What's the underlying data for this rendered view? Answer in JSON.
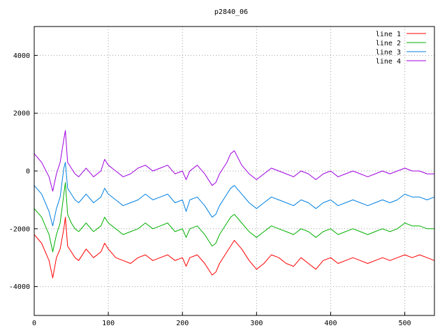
{
  "chart_data": {
    "type": "line",
    "title": "p2840_06",
    "xlabel": "",
    "ylabel": "",
    "xlim": [
      0,
      540
    ],
    "ylim": [
      -5000,
      5000
    ],
    "x_ticks": [
      "0",
      "100",
      "200",
      "300",
      "400",
      "500"
    ],
    "y_ticks": [
      "-4000",
      "-2000",
      "0",
      "2000",
      "4000"
    ],
    "grid": true,
    "legend_position": "top-right",
    "series": [
      {
        "name": "line 1",
        "color": "#ff0000",
        "x": [
          0,
          10,
          20,
          25,
          30,
          35,
          40,
          42,
          45,
          50,
          55,
          60,
          70,
          80,
          90,
          95,
          100,
          110,
          120,
          130,
          140,
          150,
          160,
          170,
          180,
          190,
          200,
          205,
          210,
          220,
          230,
          240,
          245,
          250,
          260,
          265,
          270,
          280,
          290,
          300,
          310,
          320,
          330,
          340,
          350,
          360,
          370,
          380,
          390,
          400,
          410,
          420,
          430,
          440,
          450,
          460,
          470,
          480,
          490,
          500,
          510,
          520,
          530,
          540
        ],
        "values": [
          -2200,
          -2500,
          -3100,
          -3700,
          -3000,
          -2700,
          -2000,
          -1600,
          -2600,
          -2800,
          -3000,
          -3100,
          -2700,
          -3000,
          -2800,
          -2500,
          -2700,
          -3000,
          -3100,
          -3200,
          -3000,
          -2900,
          -3100,
          -3000,
          -2900,
          -3100,
          -3000,
          -3300,
          -3000,
          -2900,
          -3200,
          -3600,
          -3500,
          -3200,
          -2800,
          -2600,
          -2400,
          -2700,
          -3100,
          -3400,
          -3200,
          -2900,
          -3000,
          -3200,
          -3300,
          -3000,
          -3200,
          -3400,
          -3100,
          -3000,
          -3200,
          -3100,
          -3000,
          -3100,
          -3200,
          -3100,
          -3000,
          -3100,
          -3000,
          -2900,
          -3000,
          -2900,
          -3000,
          -3100
        ]
      },
      {
        "name": "line 2",
        "color": "#00b000",
        "x": [
          0,
          10,
          20,
          25,
          30,
          35,
          40,
          42,
          45,
          50,
          55,
          60,
          70,
          80,
          90,
          95,
          100,
          110,
          120,
          130,
          140,
          150,
          160,
          170,
          180,
          190,
          200,
          205,
          210,
          220,
          230,
          240,
          245,
          250,
          260,
          265,
          270,
          280,
          290,
          300,
          310,
          320,
          330,
          340,
          350,
          360,
          370,
          380,
          390,
          400,
          410,
          420,
          430,
          440,
          450,
          460,
          470,
          480,
          490,
          500,
          510,
          520,
          530,
          540
        ],
        "values": [
          -1300,
          -1600,
          -2200,
          -2800,
          -2200,
          -1800,
          -800,
          -400,
          -1500,
          -1800,
          -2000,
          -2100,
          -1800,
          -2100,
          -1900,
          -1600,
          -1800,
          -2000,
          -2200,
          -2100,
          -2000,
          -1800,
          -2000,
          -1900,
          -1800,
          -2100,
          -2000,
          -2300,
          -2000,
          -1900,
          -2200,
          -2600,
          -2500,
          -2200,
          -1800,
          -1600,
          -1500,
          -1800,
          -2100,
          -2300,
          -2100,
          -1900,
          -2000,
          -2100,
          -2200,
          -2000,
          -2100,
          -2300,
          -2100,
          -2000,
          -2200,
          -2100,
          -2000,
          -2100,
          -2200,
          -2100,
          -2000,
          -2100,
          -2000,
          -1800,
          -1900,
          -1900,
          -2000,
          -2000
        ]
      },
      {
        "name": "line 3",
        "color": "#0080e0",
        "x": [
          0,
          10,
          20,
          25,
          30,
          35,
          40,
          42,
          45,
          50,
          55,
          60,
          70,
          80,
          90,
          95,
          100,
          110,
          120,
          130,
          140,
          150,
          160,
          170,
          180,
          190,
          200,
          205,
          210,
          220,
          230,
          240,
          245,
          250,
          260,
          265,
          270,
          280,
          290,
          300,
          310,
          320,
          330,
          340,
          350,
          360,
          370,
          380,
          390,
          400,
          410,
          420,
          430,
          440,
          450,
          460,
          470,
          480,
          490,
          500,
          510,
          520,
          530,
          540
        ],
        "values": [
          -500,
          -800,
          -1400,
          -1900,
          -1300,
          -900,
          100,
          300,
          -600,
          -800,
          -1000,
          -1100,
          -800,
          -1100,
          -900,
          -600,
          -800,
          -1000,
          -1200,
          -1100,
          -1000,
          -800,
          -1000,
          -900,
          -800,
          -1100,
          -1000,
          -1400,
          -1000,
          -900,
          -1200,
          -1600,
          -1500,
          -1200,
          -800,
          -600,
          -500,
          -800,
          -1100,
          -1300,
          -1100,
          -900,
          -1000,
          -1100,
          -1200,
          -1000,
          -1100,
          -1300,
          -1100,
          -1000,
          -1200,
          -1100,
          -1000,
          -1100,
          -1200,
          -1100,
          -1000,
          -1100,
          -1000,
          -800,
          -900,
          -900,
          -1000,
          -900
        ]
      },
      {
        "name": "line 4",
        "color": "#a000e0",
        "x": [
          0,
          10,
          20,
          25,
          30,
          35,
          40,
          42,
          45,
          50,
          55,
          60,
          70,
          80,
          90,
          95,
          100,
          110,
          120,
          130,
          140,
          150,
          160,
          170,
          180,
          190,
          200,
          205,
          210,
          220,
          230,
          240,
          245,
          250,
          260,
          265,
          270,
          280,
          290,
          300,
          310,
          320,
          330,
          340,
          350,
          360,
          370,
          380,
          390,
          400,
          410,
          420,
          430,
          440,
          450,
          460,
          470,
          480,
          490,
          500,
          510,
          520,
          530,
          540
        ],
        "values": [
          600,
          300,
          -200,
          -700,
          -100,
          300,
          1100,
          1400,
          300,
          100,
          -100,
          -200,
          100,
          -200,
          0,
          400,
          200,
          0,
          -200,
          -100,
          100,
          200,
          0,
          100,
          200,
          -100,
          0,
          -300,
          0,
          200,
          -100,
          -500,
          -400,
          -100,
          300,
          600,
          700,
          200,
          -100,
          -300,
          -100,
          100,
          0,
          -100,
          -200,
          0,
          -100,
          -300,
          -100,
          0,
          -200,
          -100,
          0,
          -100,
          -200,
          -100,
          0,
          -100,
          0,
          100,
          0,
          0,
          -100,
          -100
        ]
      }
    ]
  }
}
